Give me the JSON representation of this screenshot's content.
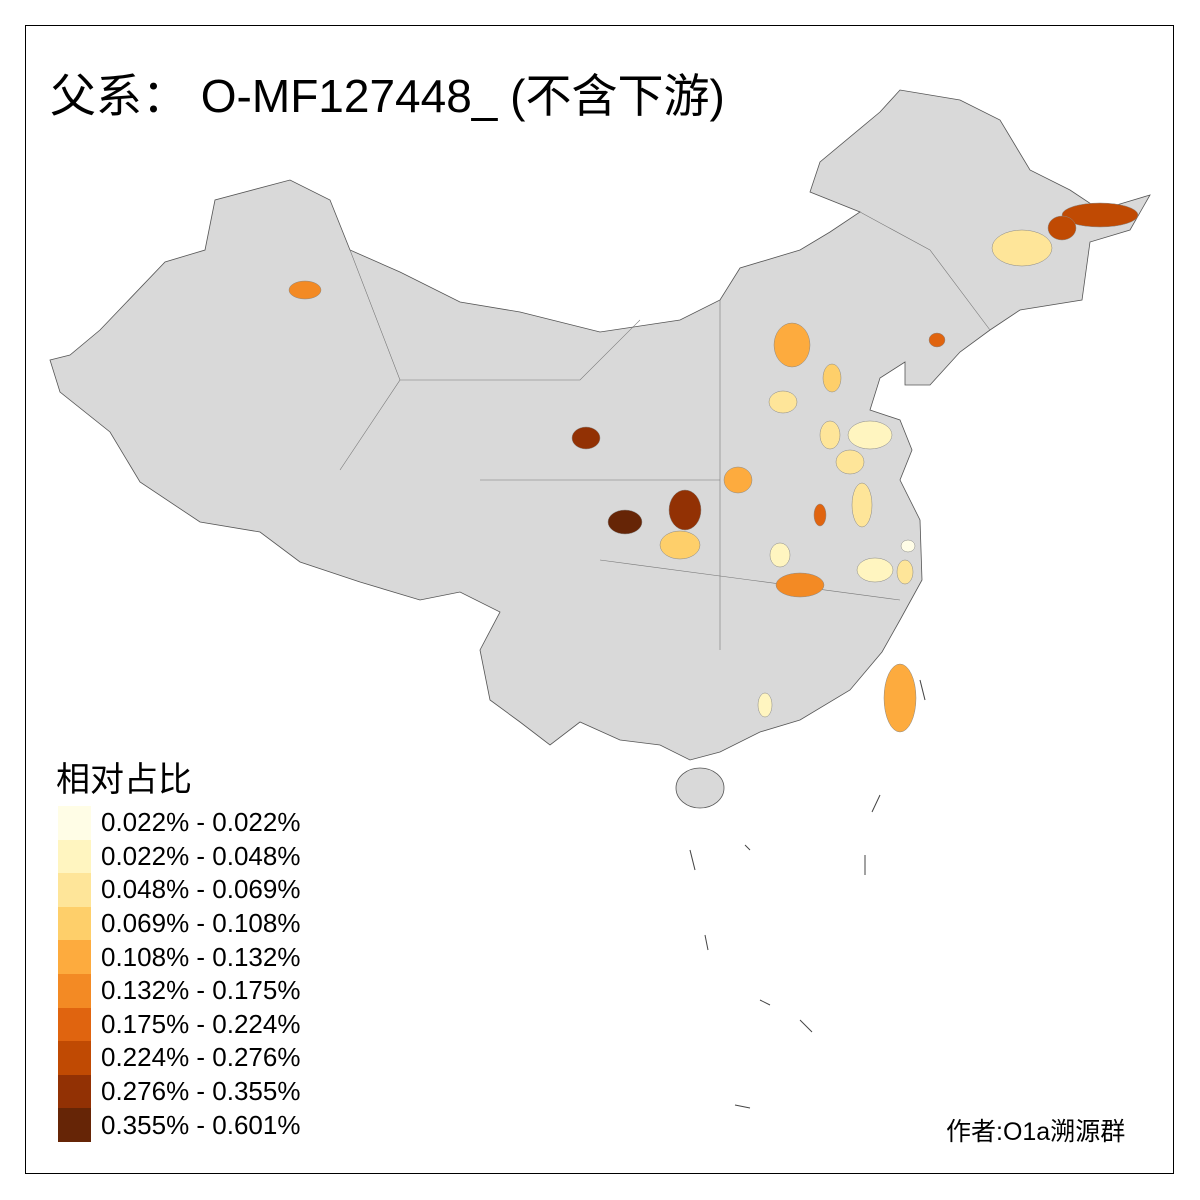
{
  "title": "父系： O-MF127448_ (不含下游)",
  "legend": {
    "title": "相对占比",
    "classes": [
      {
        "label": "0.022% - 0.022%",
        "color": "#FFFDE6"
      },
      {
        "label": "0.022% - 0.048%",
        "color": "#FFF5C0"
      },
      {
        "label": "0.048% - 0.069%",
        "color": "#FEE599"
      },
      {
        "label": "0.069% - 0.108%",
        "color": "#FECF6A"
      },
      {
        "label": "0.108% - 0.132%",
        "color": "#FDAB3E"
      },
      {
        "label": "0.132% - 0.175%",
        "color": "#F38A24"
      },
      {
        "label": "0.175% - 0.224%",
        "color": "#E0640F"
      },
      {
        "label": "0.224% - 0.276%",
        "color": "#C04A03"
      },
      {
        "label": "0.276% - 0.355%",
        "color": "#923104"
      },
      {
        "label": "0.355% - 0.601%",
        "color": "#662506"
      }
    ]
  },
  "base_color": "#D9D9D9",
  "credit": "作者:O1a溯源群"
}
